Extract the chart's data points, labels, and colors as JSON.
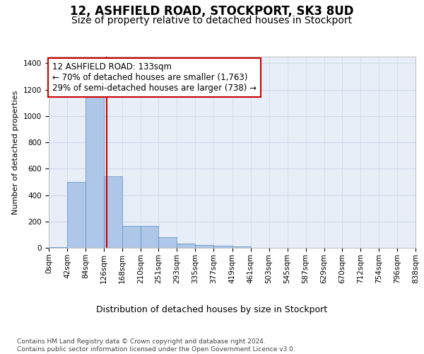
{
  "title1": "12, ASHFIELD ROAD, STOCKPORT, SK3 8UD",
  "title2": "Size of property relative to detached houses in Stockport",
  "xlabel": "Distribution of detached houses by size in Stockport",
  "ylabel": "Number of detached properties",
  "footnote": "Contains HM Land Registry data © Crown copyright and database right 2024.\nContains public sector information licensed under the Open Government Licence v3.0.",
  "bin_edges": [
    0,
    42,
    84,
    126,
    168,
    210,
    251,
    293,
    335,
    377,
    419,
    461,
    503,
    545,
    587,
    629,
    670,
    712,
    754,
    796,
    838
  ],
  "bar_heights": [
    8,
    500,
    1180,
    540,
    165,
    165,
    80,
    30,
    22,
    15,
    12,
    0,
    0,
    0,
    0,
    0,
    0,
    0,
    0,
    0
  ],
  "bar_color": "#aec6e8",
  "bar_edge_color": "#5a8fc2",
  "grid_color": "#d0d8e8",
  "background_color": "#e8eef8",
  "vline_x": 133,
  "vline_color": "#cc0000",
  "annotation_text": "12 ASHFIELD ROAD: 133sqm\n← 70% of detached houses are smaller (1,763)\n29% of semi-detached houses are larger (738) →",
  "annotation_box_color": "#ffffff",
  "annotation_box_edge": "#cc0000",
  "ylim": [
    0,
    1450
  ],
  "yticks": [
    0,
    200,
    400,
    600,
    800,
    1000,
    1200,
    1400
  ],
  "title1_fontsize": 12,
  "title2_fontsize": 10,
  "xlabel_fontsize": 9,
  "ylabel_fontsize": 8,
  "tick_fontsize": 7.5,
  "annotation_fontsize": 8.5
}
